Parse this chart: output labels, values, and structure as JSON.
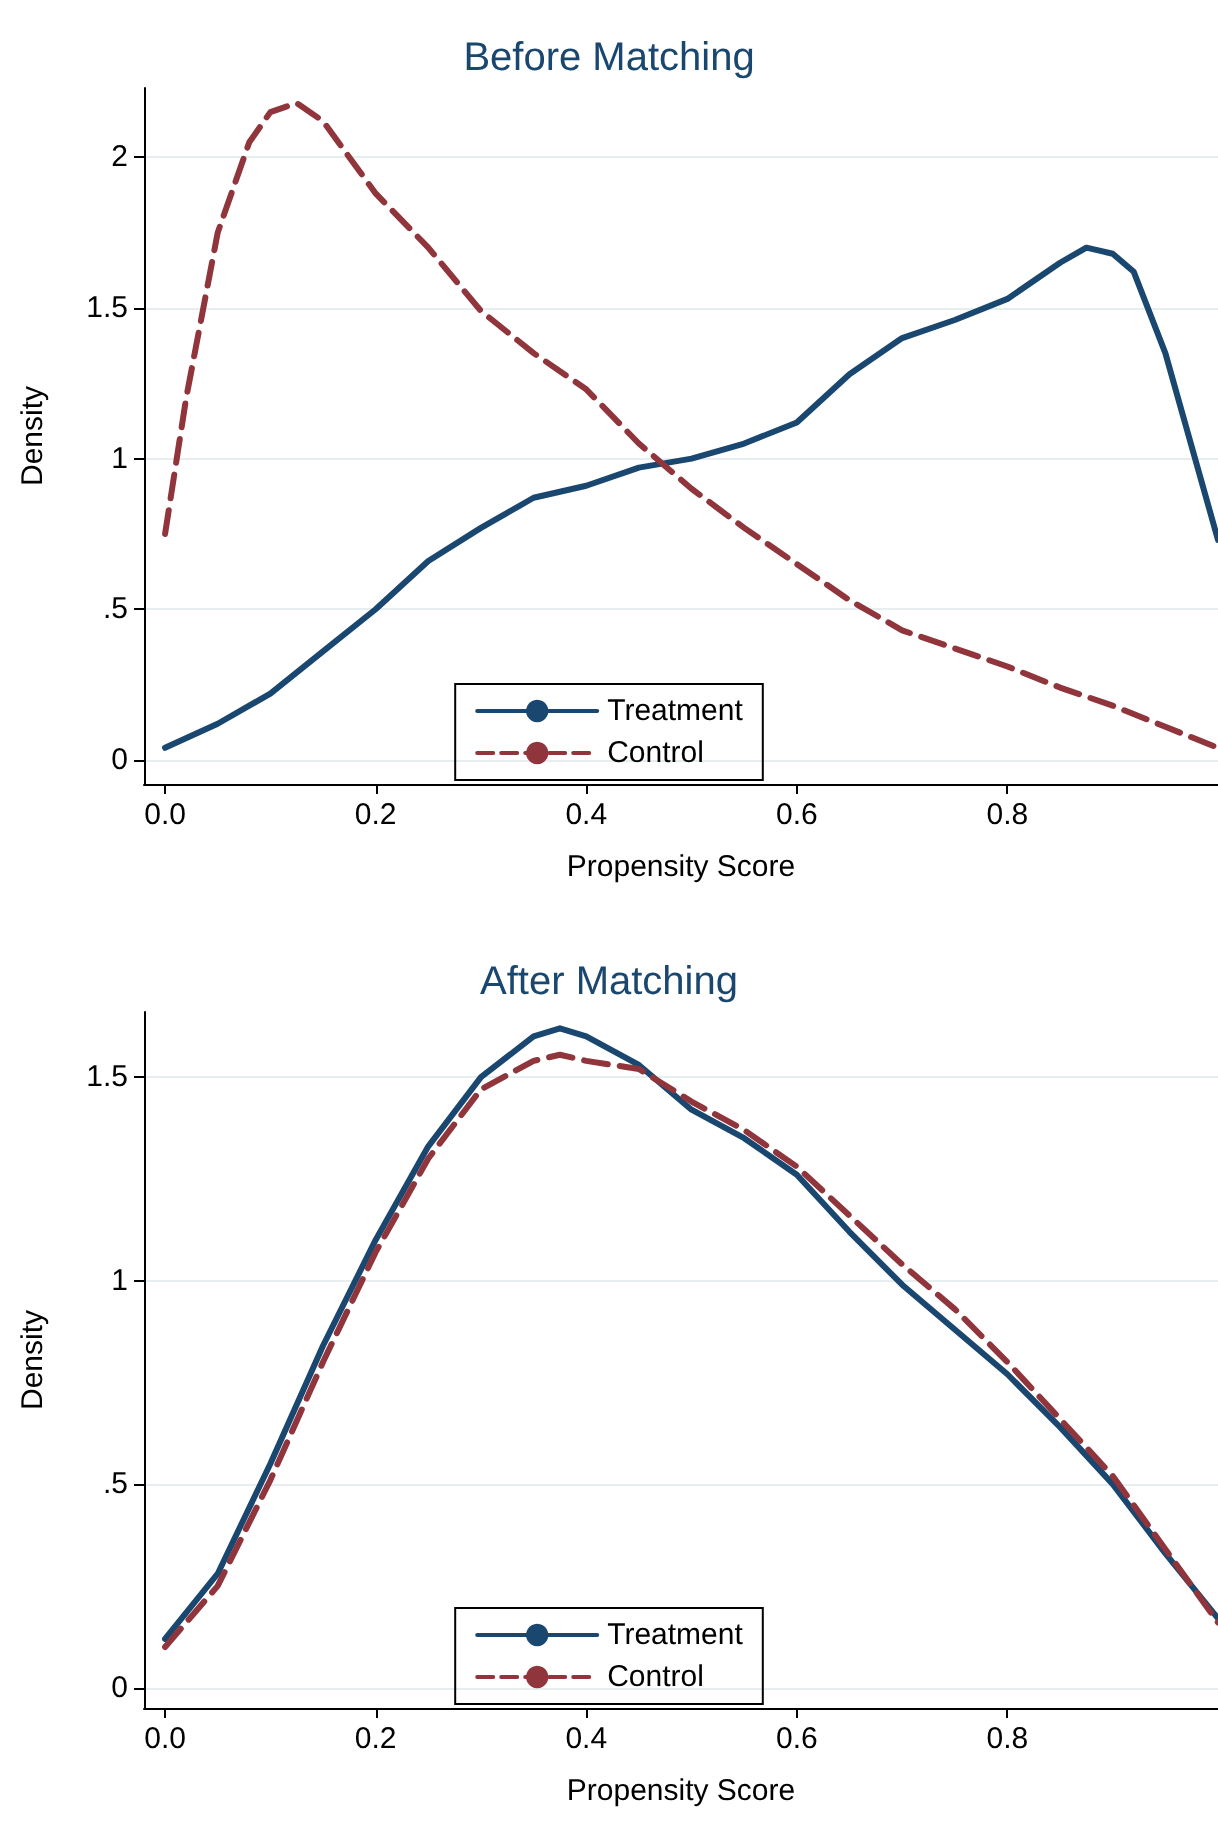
{
  "chart_data": [
    {
      "type": "line",
      "title": "Before Matching",
      "xlabel": "Propensity Score",
      "ylabel": "Density",
      "xlim": [
        -0.02,
        1.0
      ],
      "ylim": [
        -0.08,
        2.23
      ],
      "xticks": [
        {
          "value": 0,
          "label": "0.0"
        },
        0.2,
        0.4,
        0.6,
        0.8
      ],
      "yticks": [
        0,
        {
          "value": 0.5,
          "label": ".5"
        },
        1,
        1.5,
        2
      ],
      "grid": "y",
      "legend": "bottom",
      "marker": "none",
      "series": [
        {
          "name": "Treatment",
          "color": "#1a476f",
          "line_style": "solid",
          "x": [
            0,
            0.05,
            0.1,
            0.15,
            0.2,
            0.25,
            0.3,
            0.35,
            0.4,
            0.45,
            0.5,
            0.55,
            0.6,
            0.65,
            0.7,
            0.75,
            0.8,
            0.85,
            0.875,
            0.9,
            0.92,
            0.95,
            1.0
          ],
          "values": [
            0.04,
            0.12,
            0.22,
            0.36,
            0.5,
            0.66,
            0.77,
            0.87,
            0.91,
            0.97,
            1.0,
            1.05,
            1.12,
            1.28,
            1.4,
            1.46,
            1.53,
            1.65,
            1.7,
            1.68,
            1.62,
            1.35,
            0.73
          ]
        },
        {
          "name": "Control",
          "color": "#90353b",
          "line_style": "dashed",
          "x": [
            0,
            0.02,
            0.05,
            0.08,
            0.1,
            0.125,
            0.15,
            0.2,
            0.25,
            0.3,
            0.35,
            0.4,
            0.45,
            0.5,
            0.55,
            0.6,
            0.65,
            0.7,
            0.75,
            0.8,
            0.85,
            0.9,
            0.95,
            1.0
          ],
          "values": [
            0.75,
            1.2,
            1.75,
            2.05,
            2.15,
            2.18,
            2.12,
            1.88,
            1.7,
            1.49,
            1.35,
            1.23,
            1.05,
            0.9,
            0.77,
            0.65,
            0.53,
            0.43,
            0.37,
            0.31,
            0.24,
            0.18,
            0.11,
            0.04
          ]
        }
      ]
    },
    {
      "type": "line",
      "title": "After Matching",
      "xlabel": "Propensity Score",
      "ylabel": "Density",
      "xlim": [
        -0.02,
        1.0
      ],
      "ylim": [
        -0.05,
        1.66
      ],
      "xticks": [
        {
          "value": 0,
          "label": "0.0"
        },
        0.2,
        0.4,
        0.6,
        0.8
      ],
      "yticks": [
        0,
        {
          "value": 0.5,
          "label": ".5"
        },
        1,
        1.5
      ],
      "grid": "y",
      "legend": "bottom",
      "marker": "none",
      "series": [
        {
          "name": "Treatment",
          "color": "#1a476f",
          "line_style": "solid",
          "x": [
            0,
            0.05,
            0.1,
            0.15,
            0.2,
            0.25,
            0.3,
            0.35,
            0.375,
            0.4,
            0.45,
            0.5,
            0.55,
            0.6,
            0.65,
            0.7,
            0.75,
            0.8,
            0.85,
            0.9,
            0.95,
            1.0
          ],
          "values": [
            0.12,
            0.28,
            0.55,
            0.84,
            1.1,
            1.33,
            1.5,
            1.6,
            1.62,
            1.6,
            1.53,
            1.42,
            1.35,
            1.26,
            1.12,
            0.99,
            0.88,
            0.77,
            0.64,
            0.5,
            0.33,
            0.17
          ]
        },
        {
          "name": "Control",
          "color": "#90353b",
          "line_style": "dashed",
          "x": [
            0,
            0.05,
            0.1,
            0.15,
            0.2,
            0.25,
            0.3,
            0.35,
            0.375,
            0.4,
            0.45,
            0.5,
            0.55,
            0.6,
            0.65,
            0.7,
            0.75,
            0.8,
            0.85,
            0.9,
            0.95,
            1.0
          ],
          "values": [
            0.1,
            0.25,
            0.51,
            0.8,
            1.07,
            1.3,
            1.47,
            1.54,
            1.555,
            1.54,
            1.52,
            1.44,
            1.37,
            1.28,
            1.16,
            1.04,
            0.93,
            0.8,
            0.66,
            0.52,
            0.34,
            0.16
          ]
        }
      ]
    }
  ]
}
